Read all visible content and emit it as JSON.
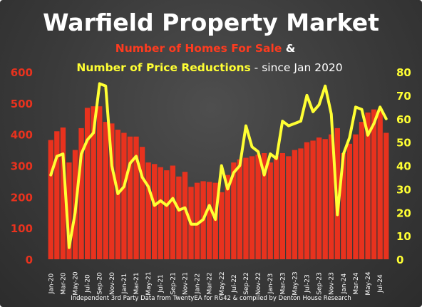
{
  "title": "Warfield Property Market",
  "subtitle_line1": {
    "part1": "Number of Homes For Sale",
    "part2": " &"
  },
  "subtitle_line2": {
    "part1": "Number of Price Reductions",
    "part2": " - since Jan 2020"
  },
  "footer": "Independent 3rd Party Data from TwentyEA for RG42 & compiled by Denton House Research",
  "colors": {
    "bars": "#e8321e",
    "line": "#ffff33",
    "left_axis": "#e8321e",
    "right_axis": "#ffff33",
    "subtitle_red": "#ff3b1f",
    "subtitle_yellow": "#ffff33",
    "white": "#ffffff"
  },
  "chart_data": {
    "type": "bar",
    "categories": [
      "Jan-20",
      "Feb-20",
      "Mar-20",
      "Apr-20",
      "May-20",
      "Jun-20",
      "Jul-20",
      "Aug-20",
      "Sep-20",
      "Oct-20",
      "Nov-20",
      "Dec-20",
      "Jan-21",
      "Feb-21",
      "Mar-21",
      "Apr-21",
      "May-21",
      "Jun-21",
      "Jul-21",
      "Aug-21",
      "Sep-21",
      "Oct-21",
      "Nov-21",
      "Dec-21",
      "Jan-22",
      "Feb-22",
      "Mar-22",
      "Apr-22",
      "May-22",
      "Jun-22",
      "Jul-22",
      "Aug-22",
      "Sep-22",
      "Oct-22",
      "Nov-22",
      "Dec-22",
      "Jan-23",
      "Feb-23",
      "Mar-23",
      "Apr-23",
      "May-23",
      "Jun-23",
      "Jul-23",
      "Aug-23",
      "Sep-23",
      "Oct-23",
      "Nov-23",
      "Dec-23",
      "Jan-24",
      "Feb-24",
      "Mar-24",
      "Apr-24",
      "May-24",
      "Jun-24",
      "Jul-24",
      "Aug-24"
    ],
    "x_tick_labels": [
      "Jan-20",
      "Mar-20",
      "May-20",
      "Jul-20",
      "Sep-20",
      "Nov-20",
      "Jan-21",
      "Mar-21",
      "May-21",
      "Jul-21",
      "Sep-21",
      "Nov-21",
      "Jan-22",
      "Mar-22",
      "May-22",
      "Jul-22",
      "Sep-22",
      "Nov-22",
      "Jan-23",
      "Mar-23",
      "May-23",
      "Jul-23",
      "Sep-23",
      "Nov-23",
      "Jan-24",
      "Mar-24",
      "May-24",
      "Jul-24"
    ],
    "series": [
      {
        "kind": "bar",
        "axis": "left",
        "values": [
          382,
          410,
          422,
          310,
          350,
          420,
          485,
          490,
          490,
          440,
          435,
          415,
          405,
          393,
          393,
          360,
          310,
          305,
          295,
          285,
          300,
          265,
          280,
          232,
          245,
          250,
          248,
          245,
          215,
          270,
          310,
          320,
          325,
          330,
          335,
          340,
          310,
          330,
          340,
          330,
          350,
          355,
          375,
          380,
          390,
          385,
          400,
          420,
          340,
          370,
          400,
          440,
          470,
          480,
          480,
          405
        ]
      },
      {
        "kind": "line",
        "axis": "right",
        "values": [
          36,
          44,
          45,
          5,
          20,
          45,
          51,
          54,
          75,
          74,
          40,
          28,
          31,
          41,
          44,
          35,
          31,
          23,
          25,
          23,
          26,
          21,
          22,
          15,
          15,
          17,
          23,
          17,
          40,
          30,
          37,
          40,
          57,
          48,
          46,
          36,
          45,
          43,
          59,
          57,
          58,
          59,
          70,
          63,
          66,
          74,
          62,
          19,
          45,
          52,
          65,
          64,
          53,
          58,
          65,
          60
        ]
      }
    ],
    "left_axis": {
      "ylim": [
        0,
        600
      ],
      "ticks": [
        "0",
        "100",
        "200",
        "300",
        "400",
        "500",
        "600"
      ]
    },
    "right_axis": {
      "ylim": [
        0,
        80
      ],
      "ticks": [
        "0",
        "10",
        "20",
        "30",
        "40",
        "50",
        "60",
        "70",
        "80"
      ]
    },
    "grid": false
  }
}
